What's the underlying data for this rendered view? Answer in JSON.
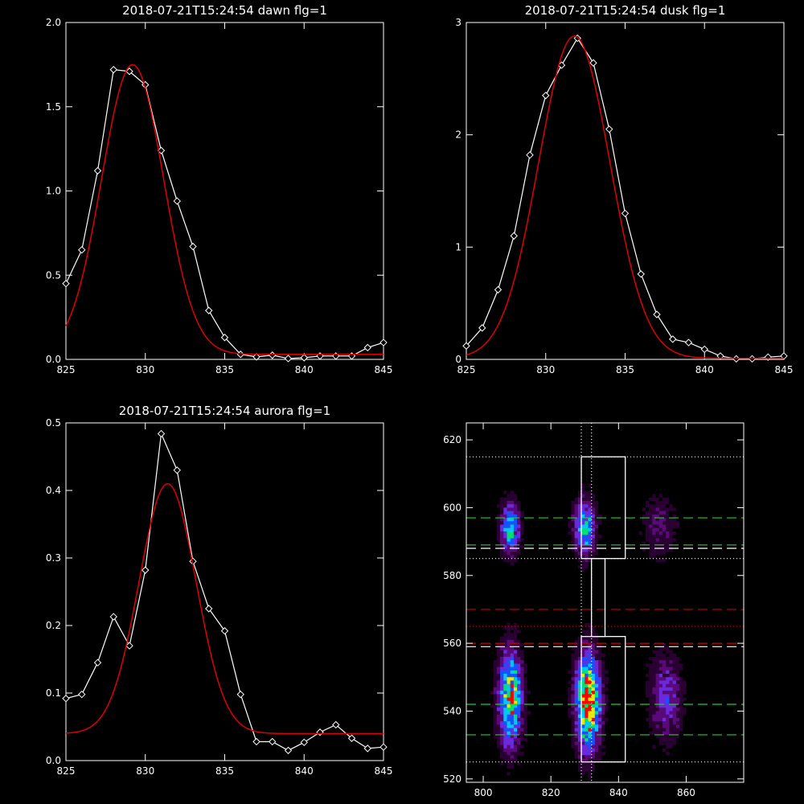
{
  "chart_data": [
    {
      "type": "line",
      "title": "2018-07-21T15:24:54 dawn flg=1",
      "xlim": [
        825,
        845
      ],
      "ylim": [
        0,
        2.0
      ],
      "xticks": [
        "825",
        "830",
        "835",
        "840",
        "845"
      ],
      "yticks": [
        "0.0",
        "0.5",
        "1.0",
        "1.5",
        "2.0"
      ],
      "series": [
        {
          "color": "#ffffff",
          "marker": "diamond",
          "x": [
            825,
            826,
            827,
            828,
            829,
            830,
            831,
            832,
            833,
            834,
            835,
            836,
            837,
            838,
            839,
            840,
            841,
            842,
            843,
            844,
            845
          ],
          "y": [
            0.45,
            0.65,
            1.12,
            1.72,
            1.71,
            1.63,
            1.24,
            0.94,
            0.67,
            0.29,
            0.13,
            0.03,
            0.015,
            0.025,
            0.005,
            0.01,
            0.02,
            0.02,
            0.02,
            0.07,
            0.1
          ]
        },
        {
          "color": "#dd0000",
          "kind": "gaussian",
          "amp": 1.72,
          "center": 829.2,
          "sigma": 1.95,
          "base": 0.03
        }
      ]
    },
    {
      "type": "line",
      "title": "2018-07-21T15:24:54 dusk flg=1",
      "xlim": [
        825,
        845
      ],
      "ylim": [
        0,
        3
      ],
      "xticks": [
        "825",
        "830",
        "835",
        "840",
        "845"
      ],
      "yticks": [
        "0",
        "1",
        "2",
        "3"
      ],
      "series": [
        {
          "color": "#ffffff",
          "marker": "diamond",
          "x": [
            825,
            826,
            827,
            828,
            829,
            830,
            831,
            832,
            833,
            834,
            835,
            836,
            837,
            838,
            839,
            840,
            841,
            842,
            843,
            844,
            845
          ],
          "y": [
            0.12,
            0.28,
            0.62,
            1.1,
            1.82,
            2.35,
            2.62,
            2.86,
            2.64,
            2.05,
            1.3,
            0.76,
            0.4,
            0.18,
            0.15,
            0.09,
            0.03,
            0.005,
            0.005,
            0.02,
            0.03
          ]
        },
        {
          "color": "#dd0000",
          "kind": "gaussian",
          "amp": 2.87,
          "center": 831.8,
          "sigma": 2.25,
          "base": 0.01
        }
      ]
    },
    {
      "type": "line",
      "title": "2018-07-21T15:24:54 aurora flg=1",
      "xlim": [
        825,
        845
      ],
      "ylim": [
        0,
        0.5
      ],
      "xticks": [
        "825",
        "830",
        "835",
        "840",
        "845"
      ],
      "yticks": [
        "0.0",
        "0.1",
        "0.2",
        "0.3",
        "0.4",
        "0.5"
      ],
      "series": [
        {
          "color": "#ffffff",
          "marker": "diamond",
          "x": [
            825,
            826,
            827,
            828,
            829,
            830,
            831,
            832,
            833,
            834,
            835,
            836,
            837,
            838,
            839,
            840,
            841,
            842,
            843,
            844,
            845
          ],
          "y": [
            0.092,
            0.098,
            0.145,
            0.213,
            0.17,
            0.282,
            0.484,
            0.43,
            0.295,
            0.225,
            0.192,
            0.098,
            0.028,
            0.028,
            0.015,
            0.027,
            0.042,
            0.053,
            0.033,
            0.018,
            0.02
          ]
        },
        {
          "color": "#dd0000",
          "kind": "gaussian",
          "amp": 0.37,
          "center": 831.4,
          "sigma": 1.8,
          "base": 0.04
        }
      ]
    },
    {
      "type": "heatmap",
      "title": "",
      "xlim": [
        795,
        877
      ],
      "ylim": [
        519,
        625
      ],
      "xticks": [
        "800",
        "820",
        "840",
        "860"
      ],
      "yticks": [
        "520",
        "540",
        "560",
        "580",
        "600",
        "620"
      ],
      "colormap": [
        "#000000",
        "#2a0033",
        "#5a0a78",
        "#6a2adb",
        "#1650ff",
        "#00c8ff",
        "#00e070",
        "#e8e800",
        "#ff0000"
      ],
      "blobs": [
        {
          "cx": 808,
          "cy": 594,
          "sx": 2.0,
          "sy": 5.5,
          "amp": 0.6
        },
        {
          "cx": 830,
          "cy": 594,
          "sx": 2.3,
          "sy": 6.0,
          "amp": 0.6
        },
        {
          "cx": 852,
          "cy": 594,
          "sx": 3.5,
          "sy": 7.0,
          "amp": 0.22
        },
        {
          "cx": 808,
          "cy": 544,
          "sx": 2.5,
          "sy": 10.0,
          "amp": 0.78
        },
        {
          "cx": 831,
          "cy": 543,
          "sx": 2.6,
          "sy": 10.0,
          "amp": 1.0
        },
        {
          "cx": 854,
          "cy": 544,
          "sx": 3.5,
          "sy": 9.0,
          "amp": 0.35
        }
      ],
      "hlines": [
        {
          "y": 615,
          "color": "#ffffff",
          "style": "dotted"
        },
        {
          "y": 597,
          "color": "#22cc22",
          "style": "dashed"
        },
        {
          "y": 589,
          "color": "#22cc22",
          "style": "dashed"
        },
        {
          "y": 588,
          "color": "#ffffff",
          "style": "dashed"
        },
        {
          "y": 585,
          "color": "#ffffff",
          "style": "dotted"
        },
        {
          "y": 570,
          "color": "#cc0000",
          "style": "dashed"
        },
        {
          "y": 565,
          "color": "#cc0000",
          "style": "dotted"
        },
        {
          "y": 560,
          "color": "#cc0000",
          "style": "dashed"
        },
        {
          "y": 559,
          "color": "#ffffff",
          "style": "dashed"
        },
        {
          "y": 542,
          "color": "#22cc22",
          "style": "dashed"
        },
        {
          "y": 533,
          "color": "#22cc22",
          "style": "dashed"
        },
        {
          "y": 525,
          "color": "#ffffff",
          "style": "dotted"
        }
      ],
      "vlines": [
        {
          "x": 829,
          "color": "#ffffff",
          "style": "dotted"
        },
        {
          "x": 832,
          "color": "#ffffff",
          "style": "dotted"
        }
      ],
      "boxes": [
        {
          "x0": 829,
          "x1": 842,
          "y0": 585,
          "y1": 615
        },
        {
          "x0": 832,
          "x1": 836,
          "y0": 562,
          "y1": 585
        },
        {
          "x0": 829,
          "x1": 842,
          "y0": 525,
          "y1": 562
        }
      ]
    }
  ]
}
